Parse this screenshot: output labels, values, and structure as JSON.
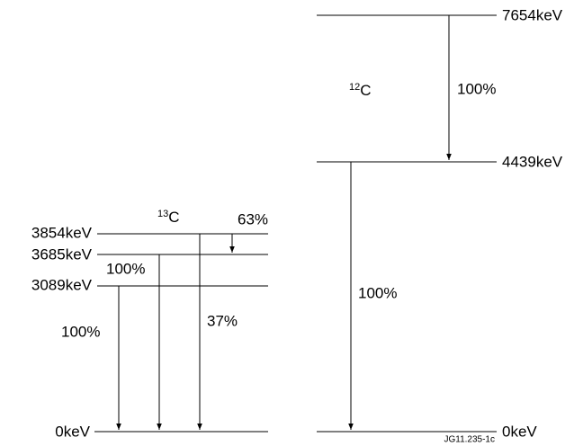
{
  "diagrams": [
    {
      "nucleus": {
        "mass": "13",
        "element": "C"
      },
      "levels": [
        {
          "label": "3854keV"
        },
        {
          "label": "3685keV"
        },
        {
          "label": "3089keV"
        },
        {
          "label": "0keV"
        }
      ],
      "transitions": [
        {
          "label": "63%"
        },
        {
          "label": "100%"
        },
        {
          "label": "100%"
        },
        {
          "label": "37%"
        }
      ]
    },
    {
      "nucleus": {
        "mass": "12",
        "element": "C"
      },
      "levels": [
        {
          "label": "7654keV"
        },
        {
          "label": "4439keV"
        },
        {
          "label": "0keV"
        }
      ],
      "transitions": [
        {
          "label": "100%"
        },
        {
          "label": "100%"
        }
      ]
    }
  ],
  "figure_id": "JG11.235-1c"
}
